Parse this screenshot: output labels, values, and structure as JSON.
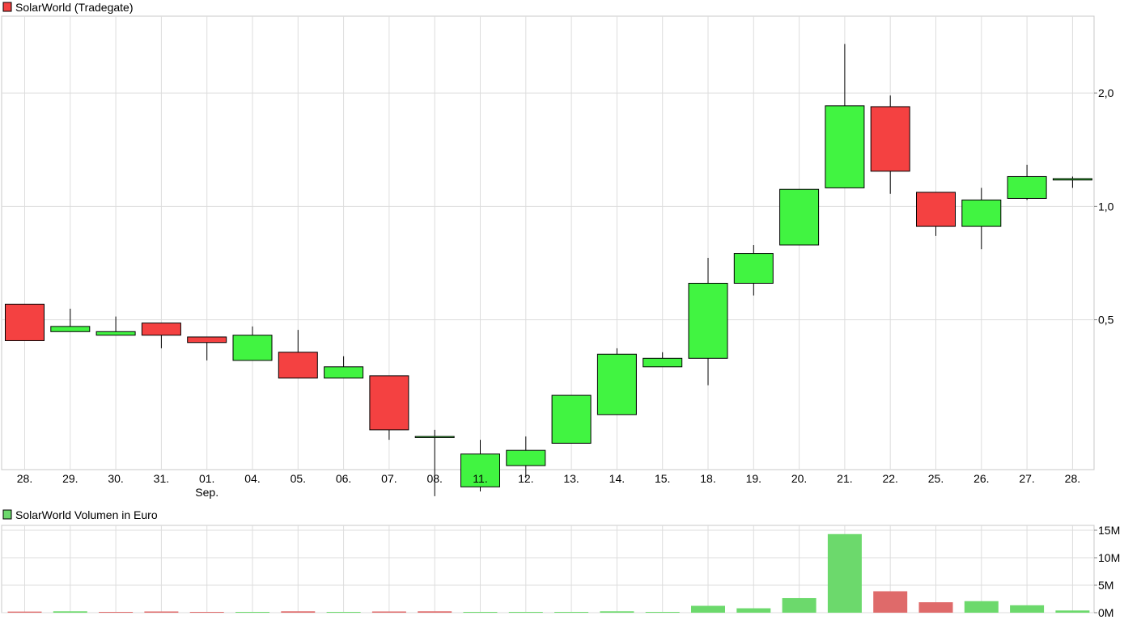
{
  "price_chart": {
    "legend": {
      "label": "SolarWorld (Tradegate)"
    }
  },
  "volume_chart": {
    "legend": {
      "label": "SolarWorld Volumen in Euro"
    }
  },
  "colors": {
    "up": "#41f441",
    "down": "#f44141",
    "volume_up": "#6cd96c",
    "volume_down": "#df6a6a",
    "grid": "#dddddd"
  },
  "chart_data": [
    {
      "type": "candlestick",
      "title": "SolarWorld (Tradegate)",
      "y_scale": "log",
      "ylim": [
        0.2,
        3.2
      ],
      "y_ticks": [
        {
          "value": 0.5,
          "label": "0,5"
        },
        {
          "value": 1.0,
          "label": "1,0"
        },
        {
          "value": 2.0,
          "label": "2,0"
        }
      ],
      "categories": [
        "28.",
        "29.",
        "30.",
        "31.",
        "01.",
        "04.",
        "05.",
        "06.",
        "07.",
        "08.",
        "11.",
        "12.",
        "13.",
        "14.",
        "15.",
        "18.",
        "19.",
        "20.",
        "21.",
        "22.",
        "25.",
        "26.",
        "27.",
        "28."
      ],
      "month_labels": [
        {
          "index": 4,
          "label": "Sep."
        }
      ],
      "ohlc": [
        {
          "o": 0.55,
          "h": 0.55,
          "l": 0.44,
          "c": 0.44
        },
        {
          "o": 0.465,
          "h": 0.535,
          "l": 0.465,
          "c": 0.48
        },
        {
          "o": 0.455,
          "h": 0.51,
          "l": 0.455,
          "c": 0.465
        },
        {
          "o": 0.49,
          "h": 0.49,
          "l": 0.42,
          "c": 0.455
        },
        {
          "o": 0.45,
          "h": 0.45,
          "l": 0.39,
          "c": 0.435
        },
        {
          "o": 0.39,
          "h": 0.48,
          "l": 0.39,
          "c": 0.455
        },
        {
          "o": 0.41,
          "h": 0.47,
          "l": 0.35,
          "c": 0.35
        },
        {
          "o": 0.35,
          "h": 0.4,
          "l": 0.35,
          "c": 0.375
        },
        {
          "o": 0.355,
          "h": 0.355,
          "l": 0.24,
          "c": 0.255
        },
        {
          "o": 0.245,
          "h": 0.255,
          "l": 0.17,
          "c": 0.245
        },
        {
          "o": 0.18,
          "h": 0.24,
          "l": 0.175,
          "c": 0.22
        },
        {
          "o": 0.205,
          "h": 0.245,
          "l": 0.19,
          "c": 0.225
        },
        {
          "o": 0.235,
          "h": 0.315,
          "l": 0.235,
          "c": 0.315
        },
        {
          "o": 0.28,
          "h": 0.42,
          "l": 0.28,
          "c": 0.405
        },
        {
          "o": 0.375,
          "h": 0.41,
          "l": 0.375,
          "c": 0.395
        },
        {
          "o": 0.395,
          "h": 0.73,
          "l": 0.335,
          "c": 0.625
        },
        {
          "o": 0.625,
          "h": 0.79,
          "l": 0.58,
          "c": 0.75
        },
        {
          "o": 0.79,
          "h": 1.11,
          "l": 0.79,
          "c": 1.11
        },
        {
          "o": 1.12,
          "h": 2.7,
          "l": 1.12,
          "c": 1.85
        },
        {
          "o": 1.84,
          "h": 1.97,
          "l": 1.08,
          "c": 1.24
        },
        {
          "o": 1.09,
          "h": 1.09,
          "l": 0.835,
          "c": 0.885
        },
        {
          "o": 0.885,
          "h": 1.12,
          "l": 0.77,
          "c": 1.04
        },
        {
          "o": 1.05,
          "h": 1.29,
          "l": 1.04,
          "c": 1.2
        },
        {
          "o": 1.175,
          "h": 1.2,
          "l": 1.12,
          "c": 1.185
        }
      ]
    },
    {
      "type": "bar",
      "title": "SolarWorld Volumen in Euro",
      "ylim": [
        0,
        15
      ],
      "y_unit": "M",
      "y_ticks": [
        {
          "value": 0,
          "label": "0M"
        },
        {
          "value": 5,
          "label": "5M"
        },
        {
          "value": 10,
          "label": "10M"
        },
        {
          "value": 15,
          "label": "15M"
        }
      ],
      "categories": [
        "28.",
        "29.",
        "30.",
        "31.",
        "01.",
        "04.",
        "05.",
        "06.",
        "07.",
        "08.",
        "11.",
        "12.",
        "13.",
        "14.",
        "15.",
        "18.",
        "19.",
        "20.",
        "21.",
        "22.",
        "25.",
        "26.",
        "27.",
        "28."
      ],
      "series": [
        {
          "values": [
            0.2,
            0.25,
            0.12,
            0.22,
            0.1,
            0.1,
            0.25,
            0.1,
            0.22,
            0.25,
            0.1,
            0.05,
            0.08,
            0.25,
            0.12,
            1.25,
            0.8,
            2.65,
            14.3,
            3.9,
            1.9,
            2.1,
            1.35,
            0.4
          ],
          "direction": [
            "down",
            "up",
            "down",
            "down",
            "down",
            "up",
            "down",
            "up",
            "down",
            "down",
            "up",
            "up",
            "up",
            "up",
            "up",
            "up",
            "up",
            "up",
            "up",
            "down",
            "down",
            "up",
            "up",
            "up"
          ]
        }
      ]
    }
  ]
}
